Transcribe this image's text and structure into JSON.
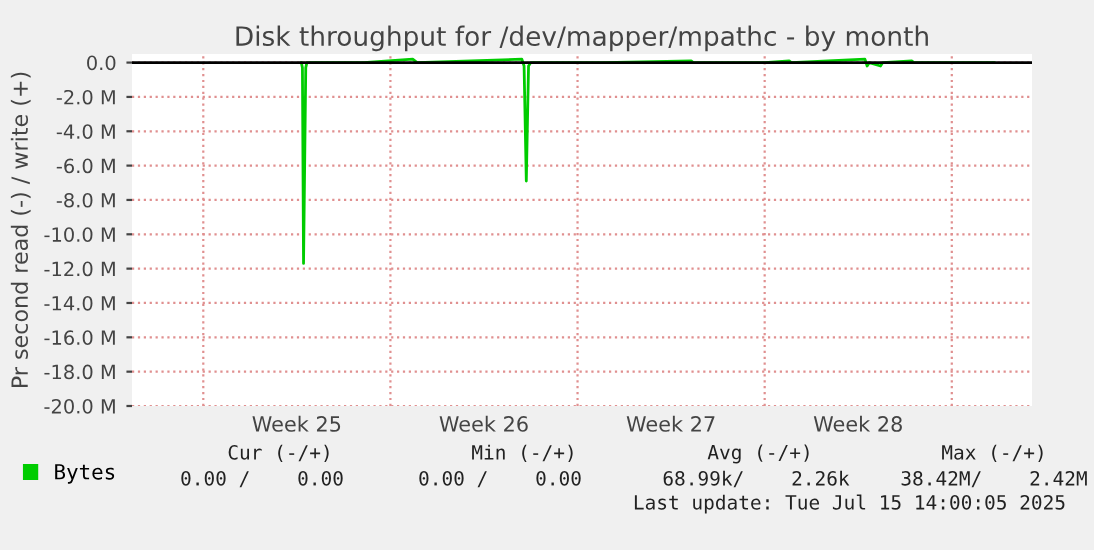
{
  "chart_data": {
    "type": "line",
    "title": "Disk throughput for /dev/mapper/mpathc - by month",
    "ylabel": "Pr second read (-) / write (+)",
    "x": [
      "2025-06-19T16:00",
      "2025-06-19T17:00",
      "2025-06-19T18:00",
      "2025-06-19T20:00",
      "2025-06-19T21:00",
      "2025-06-20T00:00",
      "2025-06-22T00:00",
      "2025-06-23T20:00",
      "2025-06-24T00:00",
      "2025-06-27T22:00",
      "2025-06-28T00:00",
      "2025-06-28T02:00",
      "2025-06-28T04:00",
      "2025-06-28T06:00",
      "2025-07-01T00:00",
      "2025-07-04T06:00",
      "2025-07-04T08:00",
      "2025-07-07T00:00",
      "2025-07-07T22:00",
      "2025-07-08T00:00",
      "2025-07-10T18:00",
      "2025-07-10T20:00",
      "2025-07-10T22:00",
      "2025-07-11T08:00",
      "2025-07-11T10:00",
      "2025-07-12T12:00",
      "2025-07-12T14:00",
      "2025-07-15T14:00"
    ],
    "series": [
      {
        "name": "Bytes",
        "color": "#00cc00",
        "values": [
          0,
          -0.3,
          -11.7,
          -0.3,
          0,
          0,
          0,
          0.2,
          0,
          0.2,
          -0.2,
          -6.9,
          -0.2,
          0,
          0,
          0.1,
          0,
          0,
          0.1,
          0,
          0.2,
          -0.2,
          0,
          -0.2,
          0,
          0.1,
          0,
          0
        ]
      }
    ],
    "xlim": [
      "2025-06-13T08:00",
      "2025-07-17T00:00"
    ],
    "xticks": [
      {
        "value": "2025-06-16",
        "label": null
      },
      {
        "value": "2025-06-19T12:00",
        "label": "Week 25"
      },
      {
        "value": "2025-06-23",
        "label": null
      },
      {
        "value": "2025-06-26T12:00",
        "label": "Week 26"
      },
      {
        "value": "2025-06-30",
        "label": null
      },
      {
        "value": "2025-07-03T12:00",
        "label": "Week 27"
      },
      {
        "value": "2025-07-07",
        "label": null
      },
      {
        "value": "2025-07-10T12:00",
        "label": "Week 28"
      },
      {
        "value": "2025-07-14",
        "label": null
      }
    ],
    "ylim": [
      -20,
      0.5
    ],
    "yticks": [
      {
        "value": 0,
        "label": "0.0"
      },
      {
        "value": -2,
        "label": "-2.0 M"
      },
      {
        "value": -4,
        "label": "-4.0 M"
      },
      {
        "value": -6,
        "label": "-6.0 M"
      },
      {
        "value": -8,
        "label": "-8.0 M"
      },
      {
        "value": -10,
        "label": "-10.0 M"
      },
      {
        "value": -12,
        "label": "-12.0 M"
      },
      {
        "value": -14,
        "label": "-14.0 M"
      },
      {
        "value": -16,
        "label": "-16.0 M"
      },
      {
        "value": -18,
        "label": "-18.0 M"
      },
      {
        "value": -20,
        "label": "-20.0 M"
      }
    ],
    "ref_lines": [
      {
        "axis": "y",
        "value": 0,
        "color": "#000000"
      }
    ],
    "grid": true,
    "legend": "bottom",
    "annotations": [
      "Cur (-/+)",
      "Min (-/+)",
      "Avg (-/+)",
      "Max (-/+)",
      "0.00 /    0.00",
      "0.00 /    0.00",
      "68.99k/    2.26k",
      "38.42M/    2.42M",
      "Last update: Tue Jul 15 14:00:05 2025"
    ]
  }
}
